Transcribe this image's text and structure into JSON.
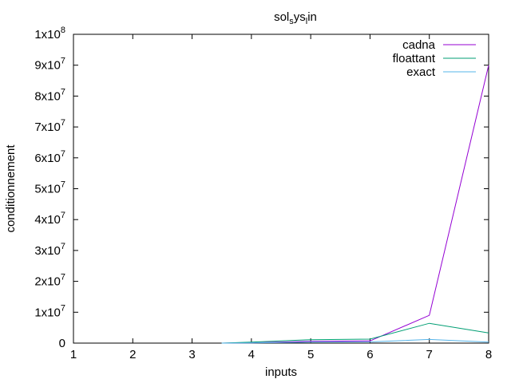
{
  "chart_data": {
    "type": "line",
    "title": {
      "parts": [
        {
          "text": "sol",
          "sub": false
        },
        {
          "text": "s",
          "sub": true
        },
        {
          "text": "ys",
          "sub": false
        },
        {
          "text": "l",
          "sub": true
        },
        {
          "text": "in",
          "sub": false
        }
      ]
    },
    "xlabel": "inputs",
    "ylabel": "conditionnement",
    "xlim": [
      1,
      8
    ],
    "ylim": [
      0,
      100000000
    ],
    "x_ticks": [
      "1",
      "2",
      "3",
      "4",
      "5",
      "6",
      "7",
      "8"
    ],
    "y_ticks": [
      {
        "value": 0,
        "base": "0",
        "exp": ""
      },
      {
        "value": 10000000,
        "base": "1x10",
        "exp": "7"
      },
      {
        "value": 20000000,
        "base": "2x10",
        "exp": "7"
      },
      {
        "value": 30000000,
        "base": "3x10",
        "exp": "7"
      },
      {
        "value": 40000000,
        "base": "4x10",
        "exp": "7"
      },
      {
        "value": 50000000,
        "base": "5x10",
        "exp": "7"
      },
      {
        "value": 60000000,
        "base": "6x10",
        "exp": "7"
      },
      {
        "value": 70000000,
        "base": "7x10",
        "exp": "7"
      },
      {
        "value": 80000000,
        "base": "8x10",
        "exp": "7"
      },
      {
        "value": 90000000,
        "base": "9x10",
        "exp": "7"
      },
      {
        "value": 100000000,
        "base": "1x10",
        "exp": "8"
      }
    ],
    "grid": false,
    "legend_position": "top-right",
    "series": [
      {
        "name": "cadna",
        "color": "#9400d3",
        "points": [
          [
            3.5,
            0
          ],
          [
            4,
            100000
          ],
          [
            5,
            600000
          ],
          [
            6,
            700000
          ],
          [
            7,
            9000000
          ],
          [
            8,
            90000000
          ]
        ]
      },
      {
        "name": "floattant",
        "color": "#009e73",
        "points": [
          [
            3.5,
            0
          ],
          [
            4,
            300000
          ],
          [
            5,
            1100000
          ],
          [
            6,
            1300000
          ],
          [
            7,
            6400000
          ],
          [
            8,
            3300000
          ]
        ]
      },
      {
        "name": "exact",
        "color": "#56b4e9",
        "points": [
          [
            3.5,
            0
          ],
          [
            4,
            50000
          ],
          [
            5,
            300000
          ],
          [
            6,
            400000
          ],
          [
            7,
            1200000
          ],
          [
            8,
            300000
          ]
        ]
      }
    ]
  }
}
